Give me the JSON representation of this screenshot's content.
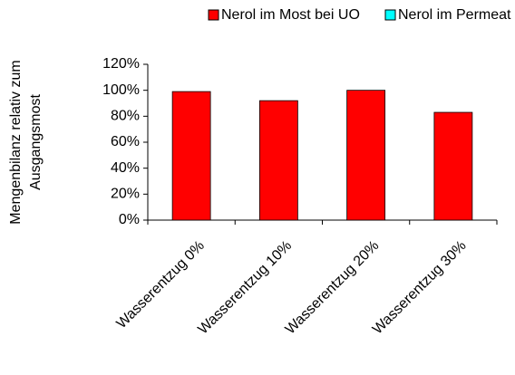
{
  "chart_data": {
    "type": "bar",
    "stacked": true,
    "categories": [
      "Wasserentzug 0%",
      "Wasserentzug 10%",
      "Wasserentzug 20%",
      "Wasserentzug 30%"
    ],
    "series": [
      {
        "name": "Nerol im Most bei UO",
        "color": "#ff0000",
        "values": [
          99,
          92,
          100,
          83
        ]
      },
      {
        "name": "Nerol im Permeat",
        "color": "#00ffff",
        "values": [
          0,
          0,
          0,
          0
        ]
      }
    ],
    "ylabel": [
      "Mengenbilanz relativ zum",
      "Ausgangsmost"
    ],
    "ylim": [
      0,
      120
    ],
    "yticks": [
      {
        "value": 0,
        "label": "0%"
      },
      {
        "value": 20,
        "label": "20%"
      },
      {
        "value": 40,
        "label": "40%"
      },
      {
        "value": 60,
        "label": "60%"
      },
      {
        "value": 80,
        "label": "80%"
      },
      {
        "value": 100,
        "label": "100%"
      },
      {
        "value": 120,
        "label": "120%"
      }
    ],
    "legend": "top"
  }
}
